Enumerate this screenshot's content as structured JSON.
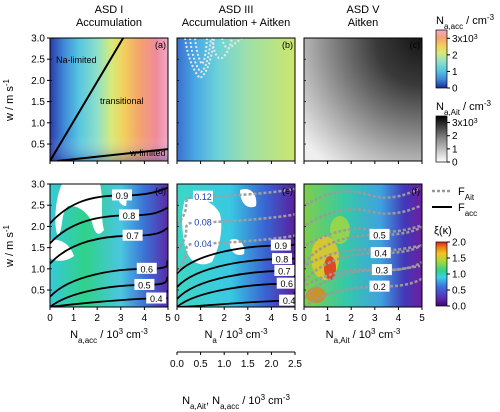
{
  "column_titles": [
    {
      "line1": "ASD I",
      "line2": "Accumulation"
    },
    {
      "line1": "ASD III",
      "line2": "Accumulation + Aitken"
    },
    {
      "line1": "ASD V",
      "line2": "Aitken"
    }
  ],
  "panel_letters": [
    "(a)",
    "(b)",
    "(c)",
    "(d)",
    "(e)",
    "(f)"
  ],
  "regime_labels": {
    "na_limited": "Na-limited",
    "transitional": "transitional",
    "w_limited": "w-limited"
  },
  "colors": {
    "f_ait_line": "#999999",
    "f_acc_line": "#000000",
    "contour": "#000000"
  },
  "chart_data": [
    {
      "type": "heatmap",
      "panel": "(a)",
      "title": "ASD I Accumulation",
      "xlabel": "",
      "ylabel": "w / m s-1",
      "xlim": [
        0,
        5
      ],
      "ylim": [
        0.1,
        3.0
      ],
      "yticks": [
        0.5,
        1.0,
        1.5,
        2.0,
        2.5,
        3.0
      ],
      "colorbar": "Na,acc",
      "regime_lines": [
        {
          "x": [
            0.0,
            3.1
          ],
          "y": [
            0.1,
            3.0
          ]
        },
        {
          "x": [
            0.3,
            5.0
          ],
          "y": [
            0.1,
            0.38
          ]
        }
      ]
    },
    {
      "type": "heatmap",
      "panel": "(b)",
      "title": "ASD III Accumulation + Aitken",
      "xlim": [
        0,
        5
      ],
      "ylim": [
        0.1,
        3.0
      ],
      "colorbar": "Na,acc"
    },
    {
      "type": "heatmap",
      "panel": "(c)",
      "title": "ASD V Aitken",
      "xlim": [
        0,
        5
      ],
      "ylim": [
        0.1,
        3.0
      ],
      "colorbar": "Na,Ait"
    },
    {
      "type": "heatmap",
      "panel": "(d)",
      "xlabel": "Na,acc / 10^3 cm-3",
      "ylabel": "w / m s-1",
      "xlim": [
        0,
        5
      ],
      "ylim": [
        0.1,
        3.0
      ],
      "xticks": [
        0,
        1,
        2,
        3,
        4,
        5
      ],
      "yticks": [
        0.5,
        1.0,
        1.5,
        2.0,
        2.5,
        3.0
      ],
      "colorbar": "ξ(κ)",
      "acc_contours": [
        {
          "level": 0.9,
          "label_at": [
            3.05,
            2.73
          ]
        },
        {
          "level": 0.8,
          "label_at": [
            3.35,
            2.26
          ]
        },
        {
          "level": 0.7,
          "label_at": [
            3.5,
            1.78
          ]
        },
        {
          "level": 0.6,
          "label_at": [
            4.1,
            1.0
          ]
        },
        {
          "level": 0.5,
          "label_at": [
            4.0,
            0.62
          ]
        },
        {
          "level": 0.4,
          "label_at": [
            4.5,
            0.3
          ]
        }
      ]
    },
    {
      "type": "heatmap",
      "panel": "(e)",
      "xlabel": "Na / 10^3 cm-3",
      "xlim": [
        0,
        5
      ],
      "ylim": [
        0.1,
        3.0
      ],
      "xticks": [
        0,
        1,
        2,
        3,
        4,
        5
      ],
      "secondary_xaxis": {
        "label": "Na,Ait, Na,acc / 10^3 cm-3",
        "ticks": [
          0.0,
          0.5,
          1.0,
          1.5,
          2.0,
          2.5
        ]
      },
      "acc_contours": [
        {
          "level": 0.9,
          "label_at": [
            4.4,
            1.55
          ]
        },
        {
          "level": 0.8,
          "label_at": [
            4.45,
            1.23
          ]
        },
        {
          "level": 0.7,
          "label_at": [
            4.55,
            0.95
          ]
        },
        {
          "level": 0.6,
          "label_at": [
            4.65,
            0.65
          ]
        },
        {
          "level": 0.4,
          "label_at": [
            4.75,
            0.25
          ]
        }
      ],
      "ait_contours": [
        {
          "level": 0.12,
          "label_at": [
            1.1,
            2.7
          ]
        },
        {
          "level": 0.08,
          "label_at": [
            1.1,
            2.1
          ]
        },
        {
          "level": 0.04,
          "label_at": [
            1.1,
            1.6
          ]
        }
      ]
    },
    {
      "type": "heatmap",
      "panel": "(f)",
      "xlabel": "Na,Ait / 10^3 cm-3",
      "xlim": [
        0,
        5
      ],
      "ylim": [
        0.1,
        3.0
      ],
      "xticks": [
        0,
        1,
        2,
        3,
        4,
        5
      ],
      "ait_contours": [
        {
          "level": 0.5,
          "label_at": [
            3.2,
            1.8
          ]
        },
        {
          "level": 0.4,
          "label_at": [
            3.25,
            1.37
          ]
        },
        {
          "level": 0.3,
          "label_at": [
            3.3,
            0.97
          ]
        },
        {
          "level": 0.2,
          "label_at": [
            3.2,
            0.58
          ]
        }
      ]
    }
  ],
  "colorbars": [
    {
      "id": "na-acc",
      "label": "Na,acc / cm-3",
      "ticks": [
        "0",
        "1",
        "2",
        "3x10^3"
      ],
      "values": [
        0,
        1000,
        2000,
        3000
      ],
      "range": [
        0,
        3500
      ]
    },
    {
      "id": "na-ait",
      "label": "Na,Ait / cm-3",
      "ticks": [
        "0",
        "1",
        "2",
        "3x10^3"
      ],
      "values": [
        0,
        1000,
        2000,
        3000
      ],
      "range": [
        0,
        3500
      ]
    },
    {
      "id": "xi",
      "label": "ξ(κ)",
      "ticks": [
        "0.0",
        "0.5",
        "1.0",
        "1.5",
        "2.0"
      ],
      "values": [
        0.0,
        0.5,
        1.0,
        1.5,
        2.0
      ],
      "range": [
        0,
        2
      ]
    }
  ],
  "legend": {
    "f_ait": "FAit",
    "f_acc": "Facc"
  }
}
